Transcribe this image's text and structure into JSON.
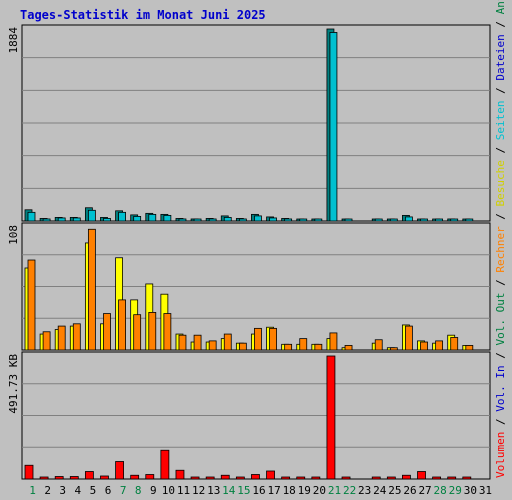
{
  "chart_data": {
    "type": "bar",
    "title": "Tages-Statistik im Monat Juni 2025",
    "x": [
      "1",
      "2",
      "3",
      "4",
      "5",
      "6",
      "7",
      "8",
      "9",
      "10",
      "11",
      "12",
      "13",
      "14",
      "15",
      "16",
      "17",
      "18",
      "19",
      "20",
      "21",
      "22",
      "23",
      "24",
      "25",
      "26",
      "27",
      "28",
      "29",
      "30",
      "31"
    ],
    "weekend_days": [
      "1",
      "7",
      "8",
      "14",
      "15",
      "21",
      "22",
      "28",
      "29"
    ],
    "colors": {
      "title": "#0000cc",
      "weekday_label": "#000000",
      "weekend_label": "#008040",
      "plot_bg": "#c0c0c0",
      "frame_bg": "#c0c0c0",
      "grid": "#808080",
      "hits": "#008080",
      "files": "#00c0d0",
      "pages": "#00c0d0",
      "visits": "#ffff00",
      "sites": "#ff8000",
      "kbytes": "#ff0000",
      "legend_sep": "#000000"
    },
    "panels": [
      {
        "name": "top",
        "ymax_label": "1884",
        "ymax": 1884,
        "series": [
          {
            "name": "Anfragen",
            "color": "#008080",
            "values": [
              110,
              25,
              35,
              35,
              130,
              35,
              100,
              60,
              75,
              65,
              25,
              20,
              25,
              50,
              25,
              65,
              40,
              25,
              15,
              15,
              1884,
              10,
              0,
              10,
              10,
              55,
              15,
              10,
              20,
              15,
              0
            ]
          },
          {
            "name": "Dateien",
            "color": "#00c0d0",
            "values": [
              85,
              20,
              30,
              30,
              105,
              25,
              85,
              45,
              65,
              55,
              20,
              15,
              20,
              35,
              20,
              50,
              30,
              20,
              12,
              12,
              1850,
              8,
              0,
              8,
              8,
              40,
              12,
              8,
              15,
              12,
              0
            ]
          },
          {
            "name": "Seiten",
            "color": "#00c0d0",
            "values": []
          }
        ]
      },
      {
        "name": "middle",
        "ymax_label": "108",
        "ymax": 108,
        "series": [
          {
            "name": "Besuche",
            "color": "#ffff00",
            "values": [
              72,
              14,
              18,
              21,
              94,
              23,
              81,
              44,
              58,
              49,
              14,
              7,
              7,
              10,
              6,
              14,
              20,
              5,
              5,
              5,
              10,
              2,
              0,
              6,
              2,
              22,
              8,
              6,
              13,
              4,
              0
            ]
          },
          {
            "name": "Rechner",
            "color": "#ff8000",
            "values": [
              79,
              16,
              21,
              23,
              106,
              32,
              44,
              31,
              33,
              32,
              13,
              13,
              8,
              14,
              6,
              19,
              19,
              5,
              10,
              5,
              15,
              4,
              0,
              9,
              2,
              21,
              7,
              8,
              11,
              4,
              0
            ]
          }
        ]
      },
      {
        "name": "bottom",
        "ymax_label": "491.73 KB",
        "ymax": 491.73,
        "series": [
          {
            "name": "Vol. Out",
            "color": "#0000cc",
            "values": []
          },
          {
            "name": "Vol. In",
            "color": "#0000cc",
            "values": []
          },
          {
            "name": "Volumen",
            "color": "#ff0000",
            "values": [
              55,
              8,
              10,
              10,
              30,
              12,
              70,
              15,
              18,
              115,
              35,
              5,
              5,
              15,
              5,
              18,
              32,
              5,
              5,
              5,
              491.73,
              5,
              0,
              5,
              5,
              15,
              30,
              5,
              5,
              5,
              0
            ]
          }
        ]
      }
    ],
    "legend": [
      {
        "label": "Volumen",
        "color": "#ff0000"
      },
      {
        "label": "Vol. In",
        "color": "#0000cc"
      },
      {
        "label": "Vol. Out",
        "color": "#008040"
      },
      {
        "label": "Rechner",
        "color": "#ff8000"
      },
      {
        "label": "Besuche",
        "color": "#d0d000"
      },
      {
        "label": "Seiten",
        "color": "#00c0d0"
      },
      {
        "label": "Dateien",
        "color": "#0000cc"
      },
      {
        "label": "Anfragen",
        "color": "#008040"
      }
    ]
  }
}
